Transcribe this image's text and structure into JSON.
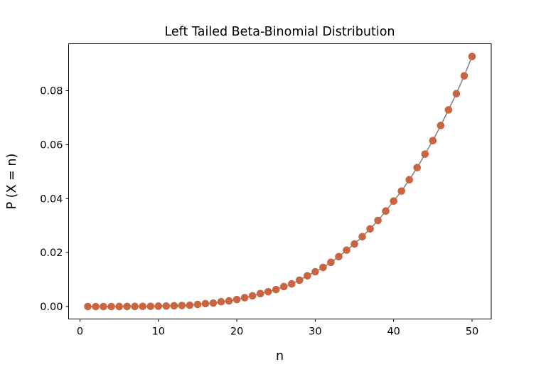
{
  "chart_data": {
    "type": "line",
    "title": "Left Tailed Beta-Binomial Distribution",
    "xlabel": "n",
    "ylabel": "P (X = n)",
    "xlim": [
      -1.45,
      52.45
    ],
    "ylim": [
      -0.0046,
      0.0974
    ],
    "xticks": [
      0,
      10,
      20,
      30,
      40,
      50
    ],
    "xtick_labels": [
      "0",
      "10",
      "20",
      "30",
      "40",
      "50"
    ],
    "yticks": [
      0,
      0.02,
      0.04,
      0.06,
      0.08
    ],
    "ytick_labels": [
      "0.00",
      "0.02",
      "0.04",
      "0.06",
      "0.08"
    ],
    "grid": false,
    "line_color": "#808080",
    "marker_color": "#c96641",
    "x": [
      1,
      2,
      3,
      4,
      5,
      6,
      7,
      8,
      9,
      10,
      11,
      12,
      13,
      14,
      15,
      16,
      17,
      18,
      19,
      20,
      21,
      22,
      23,
      24,
      25,
      26,
      27,
      28,
      29,
      30,
      31,
      32,
      33,
      34,
      35,
      36,
      37,
      38,
      39,
      40,
      41,
      42,
      43,
      44,
      45,
      46,
      47,
      48,
      49,
      50
    ],
    "y": [
      0,
      0,
      0,
      1e-05,
      2e-05,
      3e-05,
      5e-05,
      7e-05,
      0.0001,
      0.00015,
      0.0002,
      0.0003,
      0.0004,
      0.0005,
      0.0008,
      0.0011,
      0.0013,
      0.0018,
      0.0021,
      0.0026,
      0.0033,
      0.004,
      0.0048,
      0.0055,
      0.0063,
      0.0074,
      0.0084,
      0.0098,
      0.0114,
      0.0129,
      0.0145,
      0.0164,
      0.0185,
      0.0209,
      0.0232,
      0.0259,
      0.0288,
      0.0319,
      0.0354,
      0.0391,
      0.0428,
      0.047,
      0.0515,
      0.0565,
      0.0615,
      0.0671,
      0.0729,
      0.0789,
      0.0855,
      0.0927
    ]
  }
}
